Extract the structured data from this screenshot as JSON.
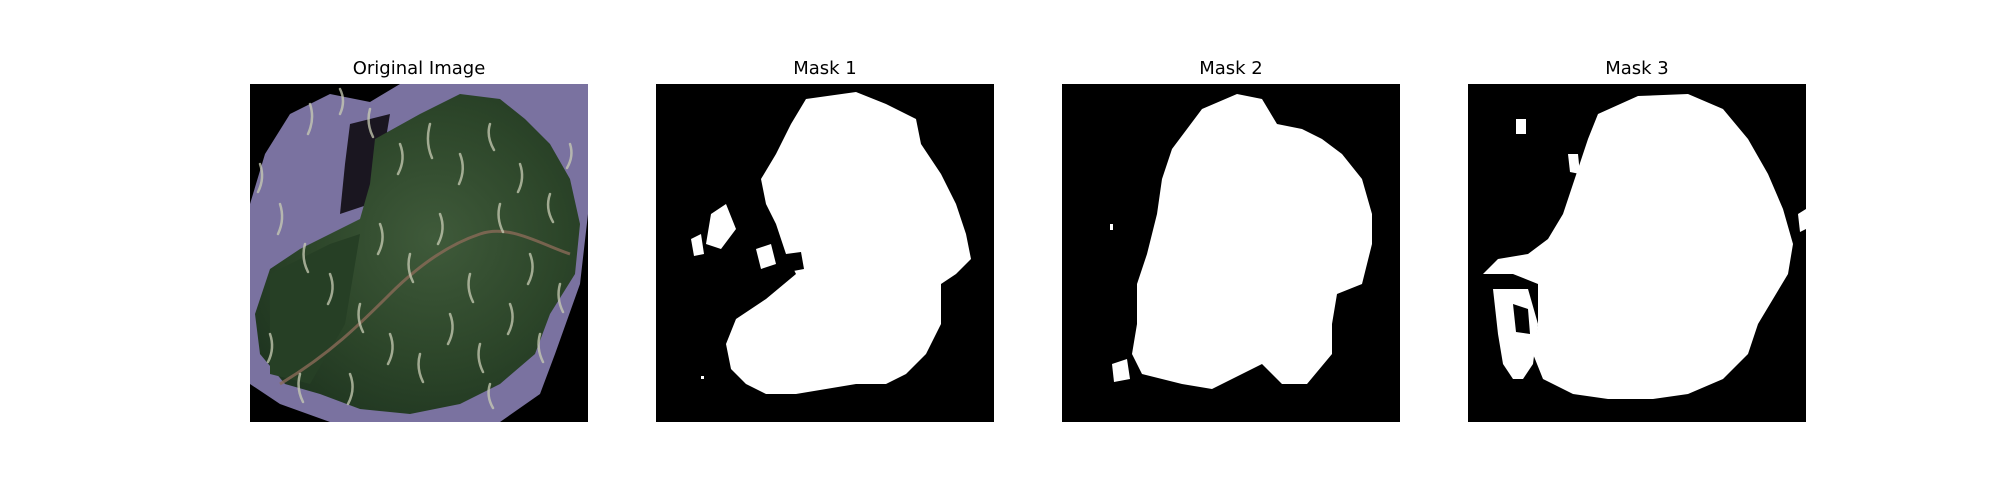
{
  "panels": [
    {
      "title": "Original Image"
    },
    {
      "title": "Mask 1"
    },
    {
      "title": "Mask 2"
    },
    {
      "title": "Mask 3"
    }
  ],
  "colors": {
    "background": "#ffffff",
    "mask_background": "#000000",
    "mask_foreground": "#ffffff",
    "leaf_green": "#2f4a2c",
    "halo_purple": "#7a72a0",
    "streak": "#c9cdb5"
  }
}
